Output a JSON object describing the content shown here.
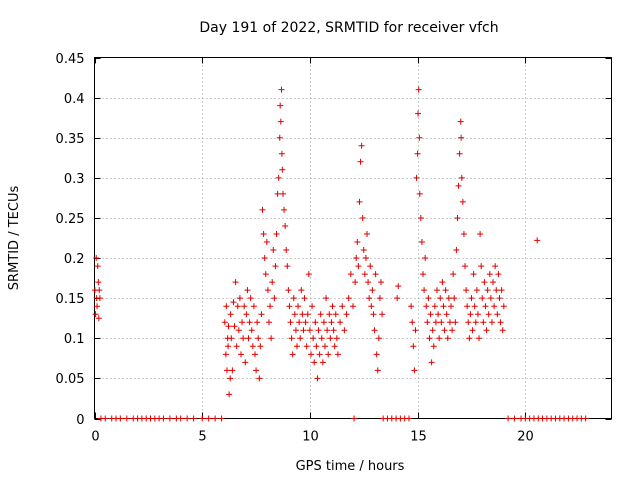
{
  "chart_data": {
    "type": "scatter",
    "title": "Day 191 of 2022, SRMTID for receiver vfch",
    "xlabel": "GPS time / hours",
    "ylabel": "SRMTID / TECUs",
    "xlim": [
      0,
      24
    ],
    "ylim": [
      0,
      0.45
    ],
    "xticks": [
      0,
      5,
      10,
      15,
      20
    ],
    "yticks": [
      0,
      0.05,
      0.1,
      0.15,
      0.2,
      0.25,
      0.3,
      0.35,
      0.4,
      0.45
    ],
    "ytick_labels": [
      "0",
      "0.05",
      "0.1",
      "0.15",
      "0.2",
      "0.25",
      "0.3",
      "0.35",
      "0.4",
      "0.45"
    ],
    "grid": true,
    "marker": "+",
    "color": "#e00000",
    "series": [
      {
        "name": "SRMTID",
        "points": [
          [
            0.02,
            0.16
          ],
          [
            0.05,
            0.13
          ],
          [
            0.08,
            0.2
          ],
          [
            0.1,
            0.15
          ],
          [
            0.12,
            0.14
          ],
          [
            0.15,
            0.19
          ],
          [
            0.18,
            0.17
          ],
          [
            0.2,
            0.125
          ],
          [
            0.22,
            0.16
          ],
          [
            0.25,
            0.15
          ],
          [
            0.3,
            0
          ],
          [
            0.5,
            0
          ],
          [
            0.8,
            0
          ],
          [
            1.0,
            0
          ],
          [
            1.2,
            0
          ],
          [
            1.5,
            0
          ],
          [
            1.8,
            0
          ],
          [
            2.0,
            0
          ],
          [
            2.2,
            0
          ],
          [
            2.4,
            0
          ],
          [
            2.6,
            0
          ],
          [
            2.8,
            0
          ],
          [
            3.0,
            0
          ],
          [
            3.2,
            0
          ],
          [
            3.5,
            0
          ],
          [
            3.8,
            0
          ],
          [
            4.0,
            0
          ],
          [
            4.3,
            0
          ],
          [
            4.6,
            0
          ],
          [
            5.0,
            0
          ],
          [
            5.3,
            0
          ],
          [
            5.6,
            0
          ],
          [
            5.9,
            0
          ],
          [
            6.05,
            0.12
          ],
          [
            6.1,
            0.08
          ],
          [
            6.12,
            0.14
          ],
          [
            6.15,
            0.06
          ],
          [
            6.18,
            0.1
          ],
          [
            6.2,
            0.09
          ],
          [
            6.22,
            0.115
          ],
          [
            6.25,
            0.03
          ],
          [
            6.3,
            0.05
          ],
          [
            6.32,
            0.13
          ],
          [
            6.35,
            0.1
          ],
          [
            6.4,
            0.06
          ],
          [
            6.45,
            0.145
          ],
          [
            6.5,
            0.115
          ],
          [
            6.55,
            0.17
          ],
          [
            6.6,
            0.09
          ],
          [
            6.65,
            0.14
          ],
          [
            6.7,
            0.11
          ],
          [
            6.75,
            0.15
          ],
          [
            6.8,
            0.08
          ],
          [
            6.85,
            0.12
          ],
          [
            6.9,
            0.1
          ],
          [
            6.95,
            0.14
          ],
          [
            7.0,
            0.07
          ],
          [
            7.05,
            0.13
          ],
          [
            7.1,
            0.16
          ],
          [
            7.15,
            0.1
          ],
          [
            7.2,
            0.12
          ],
          [
            7.25,
            0.15
          ],
          [
            7.3,
            0.11
          ],
          [
            7.35,
            0.09
          ],
          [
            7.4,
            0.14
          ],
          [
            7.45,
            0.08
          ],
          [
            7.5,
            0.06
          ],
          [
            7.55,
            0.12
          ],
          [
            7.6,
            0.1
          ],
          [
            7.65,
            0.05
          ],
          [
            7.7,
            0.09
          ],
          [
            7.75,
            0.13
          ],
          [
            7.8,
            0.26
          ],
          [
            7.85,
            0.23
          ],
          [
            7.9,
            0.2
          ],
          [
            7.95,
            0.18
          ],
          [
            8.0,
            0.22
          ],
          [
            8.05,
            0.16
          ],
          [
            8.1,
            0.12
          ],
          [
            8.15,
            0.14
          ],
          [
            8.2,
            0.1
          ],
          [
            8.25,
            0.17
          ],
          [
            8.3,
            0.21
          ],
          [
            8.35,
            0.15
          ],
          [
            8.4,
            0.19
          ],
          [
            8.45,
            0.23
          ],
          [
            8.5,
            0.28
          ],
          [
            8.55,
            0.3
          ],
          [
            8.6,
            0.35
          ],
          [
            8.62,
            0.39
          ],
          [
            8.65,
            0.37
          ],
          [
            8.68,
            0.41
          ],
          [
            8.7,
            0.33
          ],
          [
            8.72,
            0.31
          ],
          [
            8.75,
            0.28
          ],
          [
            8.8,
            0.26
          ],
          [
            8.85,
            0.24
          ],
          [
            8.9,
            0.21
          ],
          [
            8.95,
            0.19
          ],
          [
            9.0,
            0.16
          ],
          [
            9.05,
            0.14
          ],
          [
            9.1,
            0.12
          ],
          [
            9.15,
            0.1
          ],
          [
            9.2,
            0.08
          ],
          [
            9.25,
            0.15
          ],
          [
            9.3,
            0.13
          ],
          [
            9.35,
            0.11
          ],
          [
            9.4,
            0.09
          ],
          [
            9.45,
            0.14
          ],
          [
            9.5,
            0.12
          ],
          [
            9.55,
            0.1
          ],
          [
            9.6,
            0.16
          ],
          [
            9.65,
            0.13
          ],
          [
            9.7,
            0.11
          ],
          [
            9.75,
            0.15
          ],
          [
            9.8,
            0.12
          ],
          [
            9.85,
            0.09
          ],
          [
            9.9,
            0.13
          ],
          [
            9.95,
            0.18
          ],
          [
            10.0,
            0.11
          ],
          [
            10.05,
            0.08
          ],
          [
            10.1,
            0.14
          ],
          [
            10.15,
            0.1
          ],
          [
            10.2,
            0.07
          ],
          [
            10.25,
            0.12
          ],
          [
            10.3,
            0.09
          ],
          [
            10.35,
            0.05
          ],
          [
            10.4,
            0.11
          ],
          [
            10.45,
            0.08
          ],
          [
            10.5,
            0.13
          ],
          [
            10.55,
            0.1
          ],
          [
            10.6,
            0.07
          ],
          [
            10.65,
            0.12
          ],
          [
            10.7,
            0.09
          ],
          [
            10.75,
            0.15
          ],
          [
            10.8,
            0.11
          ],
          [
            10.85,
            0.08
          ],
          [
            10.9,
            0.13
          ],
          [
            10.95,
            0.1
          ],
          [
            11.0,
            0.12
          ],
          [
            11.05,
            0.14
          ],
          [
            11.1,
            0.11
          ],
          [
            11.15,
            0.09
          ],
          [
            11.2,
            0.13
          ],
          [
            11.25,
            0.1
          ],
          [
            11.3,
            0.08
          ],
          [
            11.4,
            0.12
          ],
          [
            11.5,
            0.14
          ],
          [
            11.6,
            0.11
          ],
          [
            11.7,
            0.13
          ],
          [
            11.8,
            0.15
          ],
          [
            11.9,
            0.18
          ],
          [
            12.0,
            0.14
          ],
          [
            12.05,
            0
          ],
          [
            12.1,
            0.17
          ],
          [
            12.15,
            0.2
          ],
          [
            12.2,
            0.22
          ],
          [
            12.25,
            0.19
          ],
          [
            12.3,
            0.27
          ],
          [
            12.35,
            0.32
          ],
          [
            12.4,
            0.34
          ],
          [
            12.45,
            0.25
          ],
          [
            12.5,
            0.21
          ],
          [
            12.55,
            0.18
          ],
          [
            12.6,
            0.2
          ],
          [
            12.65,
            0.23
          ],
          [
            12.7,
            0.17
          ],
          [
            12.75,
            0.15
          ],
          [
            12.8,
            0.19
          ],
          [
            12.85,
            0.14
          ],
          [
            12.9,
            0.16
          ],
          [
            12.95,
            0.13
          ],
          [
            13.0,
            0.11
          ],
          [
            13.05,
            0.18
          ],
          [
            13.1,
            0.08
          ],
          [
            13.15,
            0.06
          ],
          [
            13.2,
            0.1
          ],
          [
            13.25,
            0.15
          ],
          [
            13.3,
            0.17
          ],
          [
            13.35,
            0.13
          ],
          [
            13.4,
            0
          ],
          [
            13.6,
            0
          ],
          [
            13.8,
            0
          ],
          [
            14.0,
            0
          ],
          [
            14.2,
            0
          ],
          [
            14.4,
            0
          ],
          [
            14.6,
            0
          ],
          [
            14.05,
            0.15
          ],
          [
            14.1,
            0.165
          ],
          [
            14.7,
            0.14
          ],
          [
            14.75,
            0.12
          ],
          [
            14.8,
            0.09
          ],
          [
            14.85,
            0.06
          ],
          [
            14.9,
            0.11
          ],
          [
            14.95,
            0.3
          ],
          [
            15.0,
            0.33
          ],
          [
            15.02,
            0.38
          ],
          [
            15.05,
            0.41
          ],
          [
            15.08,
            0.35
          ],
          [
            15.1,
            0.28
          ],
          [
            15.15,
            0.25
          ],
          [
            15.2,
            0.22
          ],
          [
            15.25,
            0.18
          ],
          [
            15.3,
            0.16
          ],
          [
            15.35,
            0.2
          ],
          [
            15.4,
            0.14
          ],
          [
            15.45,
            0.12
          ],
          [
            15.5,
            0.15
          ],
          [
            15.55,
            0.1
          ],
          [
            15.6,
            0.13
          ],
          [
            15.65,
            0.07
          ],
          [
            15.7,
            0.11
          ],
          [
            15.75,
            0.09
          ],
          [
            15.8,
            0.14
          ],
          [
            15.85,
            0.12
          ],
          [
            15.9,
            0.16
          ],
          [
            15.95,
            0.13
          ],
          [
            16.0,
            0.1
          ],
          [
            16.05,
            0.15
          ],
          [
            16.1,
            0.12
          ],
          [
            16.15,
            0.17
          ],
          [
            16.2,
            0.14
          ],
          [
            16.25,
            0.11
          ],
          [
            16.3,
            0.16
          ],
          [
            16.35,
            0.13
          ],
          [
            16.4,
            0.1
          ],
          [
            16.45,
            0.15
          ],
          [
            16.5,
            0.12
          ],
          [
            16.55,
            0.14
          ],
          [
            16.6,
            0.11
          ],
          [
            16.65,
            0.18
          ],
          [
            16.7,
            0.15
          ],
          [
            16.75,
            0.12
          ],
          [
            16.8,
            0.21
          ],
          [
            16.85,
            0.25
          ],
          [
            16.9,
            0.29
          ],
          [
            16.95,
            0.33
          ],
          [
            17.0,
            0.37
          ],
          [
            17.02,
            0.35
          ],
          [
            17.05,
            0.3
          ],
          [
            17.1,
            0.27
          ],
          [
            17.15,
            0.23
          ],
          [
            17.2,
            0.19
          ],
          [
            17.25,
            0.16
          ],
          [
            17.3,
            0.14
          ],
          [
            17.35,
            0.12
          ],
          [
            17.4,
            0.1
          ],
          [
            17.45,
            0.13
          ],
          [
            17.5,
            0.15
          ],
          [
            17.55,
            0.11
          ],
          [
            17.6,
            0.18
          ],
          [
            17.65,
            0.14
          ],
          [
            17.7,
            0.12
          ],
          [
            17.75,
            0.16
          ],
          [
            17.8,
            0.13
          ],
          [
            17.85,
            0.1
          ],
          [
            17.9,
            0.23
          ],
          [
            17.95,
            0.19
          ],
          [
            18.0,
            0.15
          ],
          [
            18.05,
            0.12
          ],
          [
            18.1,
            0.17
          ],
          [
            18.15,
            0.14
          ],
          [
            18.2,
            0.11
          ],
          [
            18.25,
            0.16
          ],
          [
            18.3,
            0.13
          ],
          [
            18.35,
            0.18
          ],
          [
            18.4,
            0.15
          ],
          [
            18.45,
            0.12
          ],
          [
            18.5,
            0.17
          ],
          [
            18.55,
            0.14
          ],
          [
            18.6,
            0.19
          ],
          [
            18.65,
            0.16
          ],
          [
            18.7,
            0.13
          ],
          [
            18.75,
            0.18
          ],
          [
            18.8,
            0.15
          ],
          [
            18.85,
            0.12
          ],
          [
            18.9,
            0.16
          ],
          [
            18.95,
            0.11
          ],
          [
            19.0,
            0.14
          ],
          [
            19.2,
            0
          ],
          [
            19.5,
            0
          ],
          [
            19.8,
            0
          ],
          [
            20.0,
            0
          ],
          [
            20.2,
            0
          ],
          [
            20.4,
            0
          ],
          [
            20.55,
            0.222
          ],
          [
            20.6,
            0
          ],
          [
            20.8,
            0
          ],
          [
            21.0,
            0
          ],
          [
            21.2,
            0
          ],
          [
            21.4,
            0
          ],
          [
            21.6,
            0
          ],
          [
            21.8,
            0
          ],
          [
            22.0,
            0
          ],
          [
            22.2,
            0
          ],
          [
            22.4,
            0
          ],
          [
            22.6,
            0
          ],
          [
            22.8,
            0
          ]
        ]
      }
    ]
  }
}
